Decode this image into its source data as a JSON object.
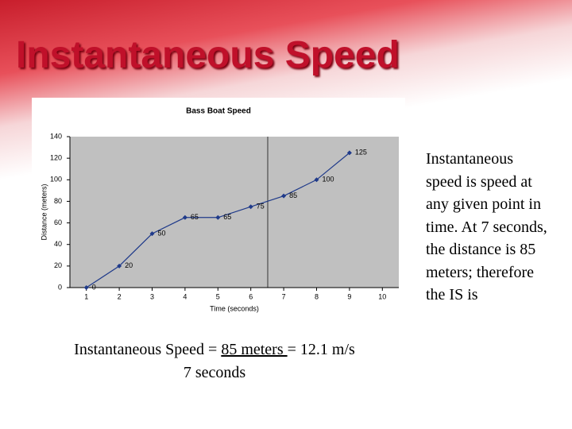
{
  "title": "Instantaneous Speed",
  "chart_data": {
    "type": "line",
    "title": "Bass Boat Speed",
    "x_label": "Time (seconds)",
    "y_label": "Distance (meters)",
    "x": [
      1,
      2,
      3,
      4,
      5,
      6,
      7,
      8,
      9
    ],
    "series": [
      {
        "name": "Distance",
        "color": "#1f3a8a",
        "values": [
          0,
          20,
          50,
          65,
          65,
          75,
          85,
          100,
          125
        ]
      }
    ],
    "xlim": [
      0.5,
      10.5
    ],
    "xticks": [
      1,
      2,
      3,
      4,
      5,
      6,
      7,
      8,
      9,
      10
    ],
    "ylim": [
      0,
      140
    ],
    "yticks": [
      0,
      20,
      40,
      60,
      80,
      100,
      120,
      140
    ],
    "data_labels": true
  },
  "formula": {
    "lead": "Instantaneous Speed = ",
    "numerator": "85 meters ",
    "result": "= 12.1 m/s",
    "denominator": "7 seconds"
  },
  "body": "Instantaneous speed is speed at any given point in time. At 7 seconds, the distance is 85 meters; therefore the IS is"
}
